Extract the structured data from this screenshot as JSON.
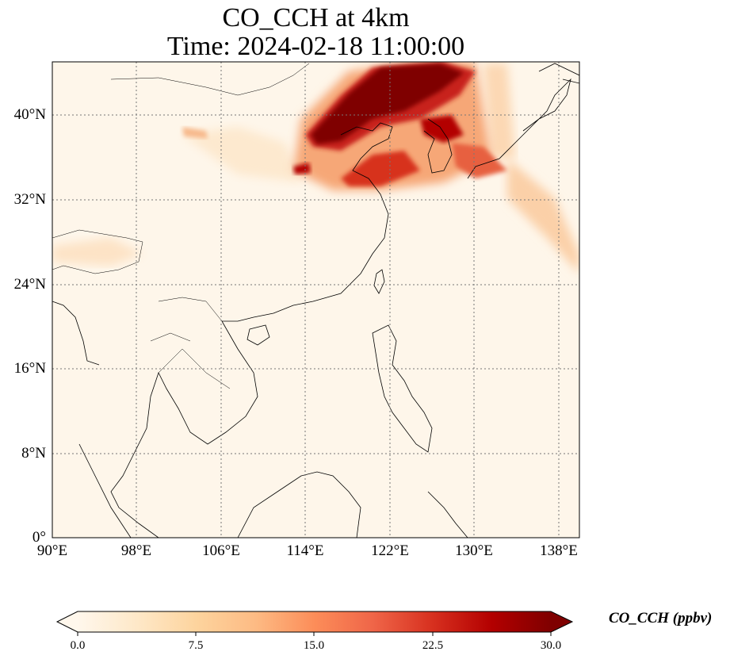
{
  "title_line1": "CO_CCH at 4km",
  "title_line2": "Time: 2024-02-18 11:00:00",
  "lat_labels": [
    "40°N",
    "32°N",
    "24°N",
    "16°N",
    "8°N",
    "0°"
  ],
  "lon_labels": [
    "90°E",
    "98°E",
    "106°E",
    "114°E",
    "122°E",
    "130°E",
    "138°E"
  ],
  "colorbar": {
    "label": "CO_CCH (ppbv)",
    "ticks": [
      "0.0",
      "7.5",
      "15.0",
      "22.5",
      "30.0"
    ],
    "min": 0,
    "max": 30,
    "colormap": "OrRd",
    "colors": [
      "#fff7ec",
      "#fee8c8",
      "#fdd49e",
      "#fdbb84",
      "#fc8d59",
      "#ef6548",
      "#d7301f",
      "#b30000",
      "#7f0000"
    ],
    "extend": "both"
  },
  "map": {
    "extent_lon": [
      90,
      140
    ],
    "extent_lat": [
      0,
      45
    ],
    "gridlines": "dotted",
    "coastlines": true,
    "borders": true
  }
}
